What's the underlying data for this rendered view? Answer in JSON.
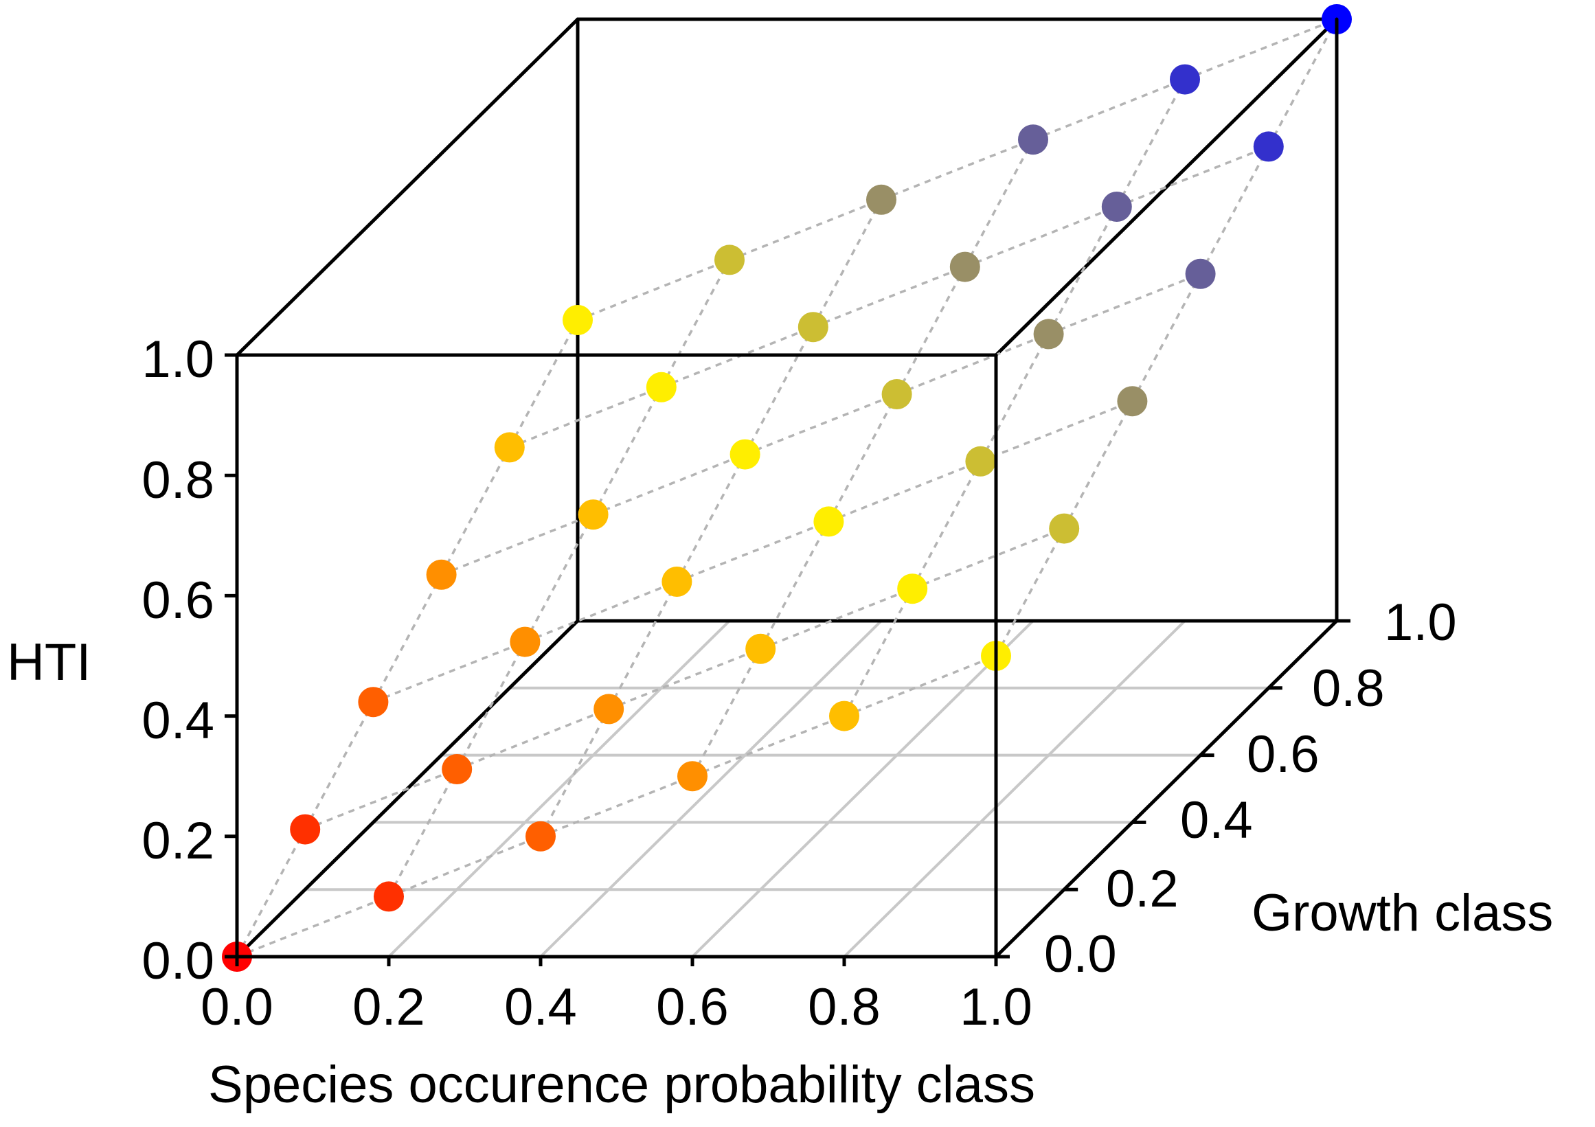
{
  "chart_data": {
    "type": "scatter3d",
    "title": "",
    "xlabel": "Species occurence probability class",
    "ylabel": "Growth class",
    "zlabel": "HTI",
    "xlim": [
      0,
      1
    ],
    "ylim": [
      0,
      1
    ],
    "zlim": [
      0,
      1
    ],
    "x_ticks": [
      "0.0",
      "0.2",
      "0.4",
      "0.6",
      "0.8",
      "1.0"
    ],
    "y_ticks": [
      "0.0",
      "0.2",
      "0.4",
      "0.6",
      "0.8",
      "1.0"
    ],
    "z_ticks": [
      "0.0",
      "0.2",
      "0.4",
      "0.6",
      "0.8",
      "1.0"
    ],
    "x_values": [
      0,
      0.2,
      0.4,
      0.6,
      0.8,
      1.0
    ],
    "y_values": [
      0,
      0.2,
      0.4,
      0.6,
      0.8,
      1.0
    ],
    "hti_rule": "HTI = (x + y) / 2",
    "color_low": "#ff0000",
    "color_mid": "#ffee00",
    "color_high": "#0000ff",
    "grid_color": "#c8c8c8",
    "link_color": "#b4b4b4",
    "box_color": "#000000"
  }
}
